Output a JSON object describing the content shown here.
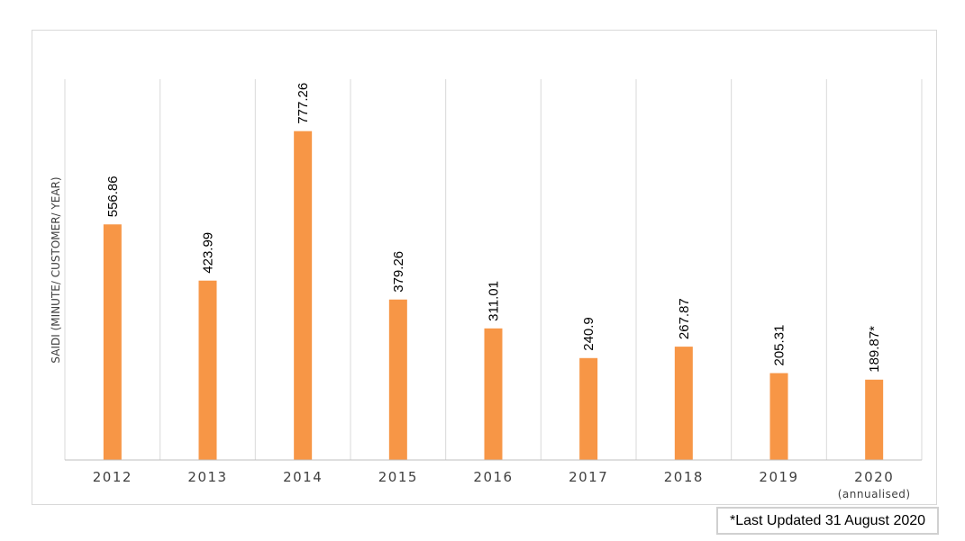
{
  "chart_data": {
    "type": "bar",
    "ylabel": "SAIDI (MINUTE/ CUSTOMER/ YEAR)",
    "categories": [
      "2012",
      "2013",
      "2014",
      "2015",
      "2016",
      "2017",
      "2018",
      "2019",
      "2020"
    ],
    "category_sublabels": [
      "",
      "",
      "",
      "",
      "",
      "",
      "",
      "",
      "(annualised)"
    ],
    "values": [
      556.86,
      423.99,
      777.26,
      379.26,
      311.01,
      240.9,
      267.87,
      205.31,
      189.87
    ],
    "data_labels": [
      "556.86",
      "423.99",
      "777.26",
      "379.26",
      "311.01",
      "240.9",
      "267.87",
      "205.31",
      "189.87*"
    ],
    "ylim": [
      0,
      900
    ],
    "grid": "vertical",
    "legend": "none",
    "bar_color": "#F79646"
  },
  "footnote": "*Last Updated 31 August 2020"
}
